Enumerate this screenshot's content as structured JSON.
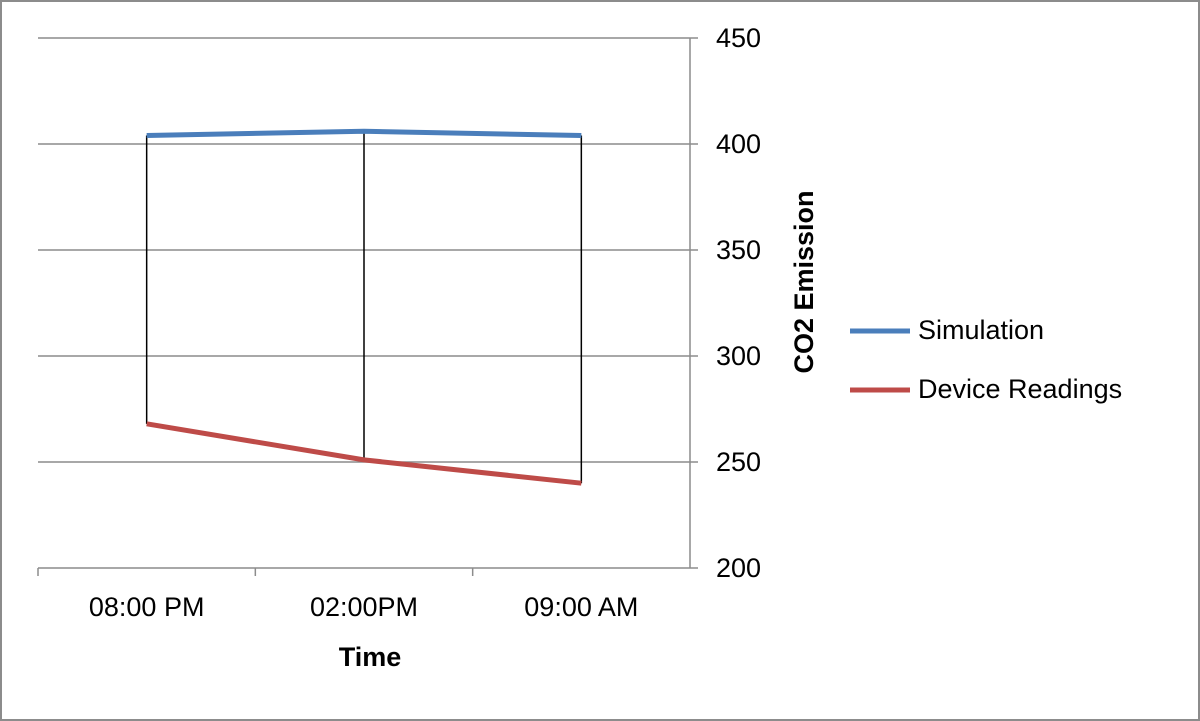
{
  "chart_data": {
    "type": "line",
    "x_label": "Time",
    "y_label": "CO2 Emission",
    "categories": [
      "08:00 PM",
      "02:00PM",
      "09:00 AM"
    ],
    "series": [
      {
        "name": "Simulation",
        "color": "#4a7ebb",
        "values": [
          404,
          406,
          404
        ]
      },
      {
        "name": "Device Readings",
        "color": "#be4b48",
        "values": [
          268,
          251,
          240
        ]
      }
    ],
    "ylim": [
      200,
      450
    ],
    "yticks": [
      200,
      250,
      300,
      350,
      400,
      450
    ],
    "grid": true,
    "y_axis_side": "right",
    "hi_lo_lines": true,
    "legend": "right"
  }
}
